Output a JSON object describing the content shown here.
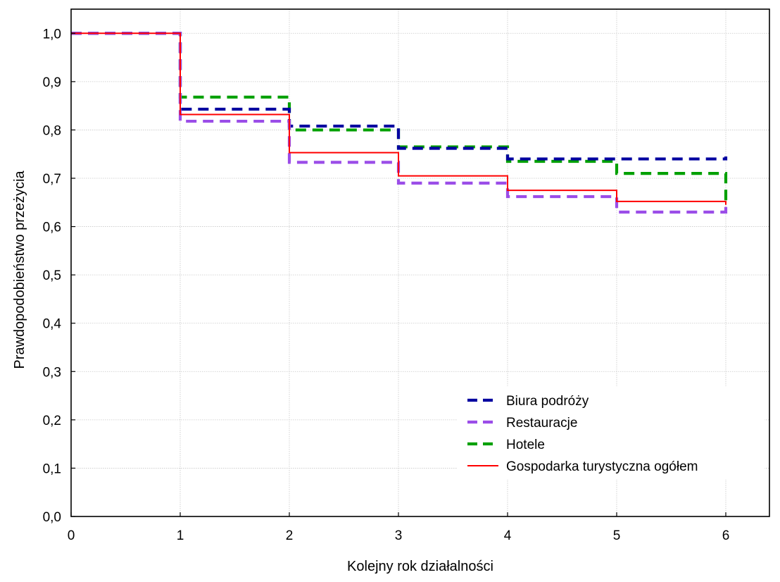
{
  "chart_data": {
    "type": "line",
    "title": "",
    "xlabel": "Kolejny rok działalności",
    "ylabel": "Prawdopodobieństwo przeżycia",
    "xlim": [
      0,
      6.4
    ],
    "ylim": [
      0,
      1.05
    ],
    "x_ticks": [
      0,
      1,
      2,
      3,
      4,
      5,
      6
    ],
    "x_tick_labels": [
      "0",
      "1",
      "2",
      "3",
      "4",
      "5",
      "6"
    ],
    "y_ticks": [
      0,
      0.1,
      0.2,
      0.3,
      0.4,
      0.5,
      0.6,
      0.7,
      0.8,
      0.9,
      1.0
    ],
    "y_tick_labels": [
      "0,0",
      "0,1",
      "0,2",
      "0,3",
      "0,4",
      "0,5",
      "0,6",
      "0,7",
      "0,8",
      "0,9",
      "1,0"
    ],
    "grid": true,
    "legend_position": "bottom-right",
    "step": true,
    "x": [
      0,
      1,
      2,
      3,
      4,
      5,
      6
    ],
    "series": [
      {
        "name": "Biura podróży",
        "values": [
          1.0,
          0.843,
          0.808,
          0.762,
          0.74,
          0.74,
          0.745
        ],
        "color": "#0000a0",
        "style": "dashed"
      },
      {
        "name": "Restauracje",
        "values": [
          1.0,
          0.818,
          0.733,
          0.69,
          0.662,
          0.63,
          0.65
        ],
        "color": "#9b4de8",
        "style": "dashed"
      },
      {
        "name": "Hotele",
        "values": [
          1.0,
          0.868,
          0.8,
          0.765,
          0.735,
          0.71,
          0.65
        ],
        "color": "#00a000",
        "style": "dashed"
      },
      {
        "name": "Gospodarka turystyczna ogółem",
        "values": [
          1.0,
          0.832,
          0.753,
          0.705,
          0.675,
          0.652,
          0.645
        ],
        "color": "#ff0000",
        "style": "solid"
      }
    ]
  }
}
